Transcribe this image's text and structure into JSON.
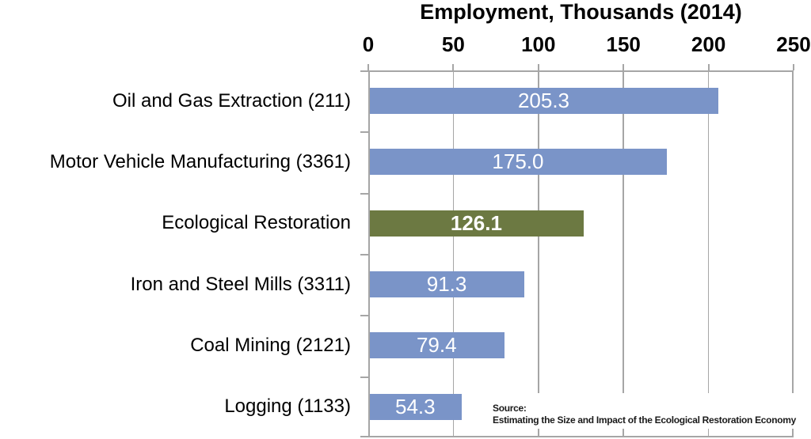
{
  "chart": {
    "title": "Employment, Thousands (2014)",
    "source_line1": "Source:",
    "source_line2": "Estimating the Size and Impact of the Ecological Restoration Economy"
  },
  "chart_data": {
    "type": "bar",
    "orientation": "horizontal",
    "title": "Employment, Thousands (2014)",
    "categories": [
      "Oil and Gas Extraction (211)",
      "Motor Vehicle Manufacturing (3361)",
      "Ecological Restoration",
      "Iron and Steel Mills (3311)",
      "Coal Mining (2121)",
      "Logging (1133)"
    ],
    "values": [
      205.3,
      175.0,
      126.1,
      91.3,
      79.4,
      54.3
    ],
    "value_labels": [
      "205.3",
      "175.0",
      "126.1",
      "91.3",
      "79.4",
      "54.3"
    ],
    "xlabel": "",
    "ylabel": "",
    "xlim": [
      0,
      250
    ],
    "x_ticks": [
      0,
      50,
      100,
      150,
      200,
      250
    ],
    "axis_position": "top",
    "grid": true,
    "legend": false,
    "highlight_category": "Ecological Restoration",
    "colors": {
      "bar_default": "#7A94C8",
      "bar_highlight": "#6C7942",
      "grid": "#A6A6A6",
      "value_label": "#FFFFFF",
      "text": "#000000"
    },
    "annotations": [
      "Source:",
      "Estimating the Size and Impact of the Ecological Restoration Economy"
    ]
  }
}
